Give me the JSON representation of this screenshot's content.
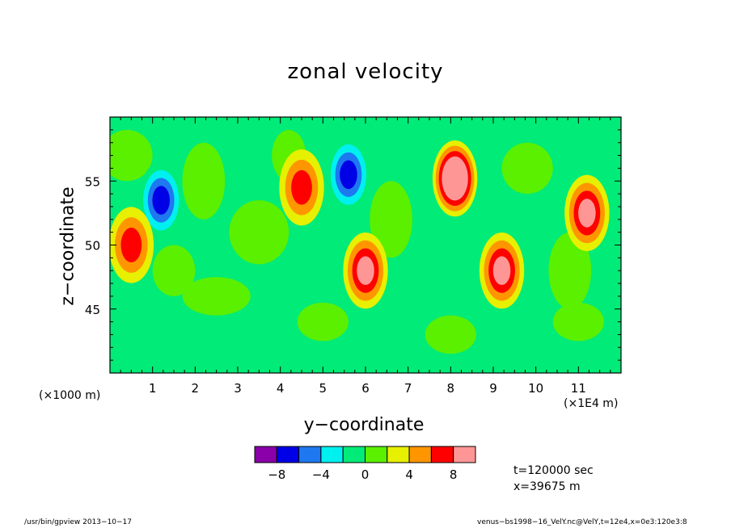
{
  "chart_data": {
    "type": "heatmap",
    "title": "zonal velocity",
    "xlabel": "y−coordinate",
    "ylabel": "z−coordinate",
    "x_unit_note_left": "(×1000 m)",
    "x_unit_note_right": "(×1E4 m)",
    "xlim": [
      0,
      12
    ],
    "ylim": [
      40,
      60
    ],
    "x_ticks": [
      "1",
      "2",
      "3",
      "4",
      "5",
      "6",
      "7",
      "8",
      "9",
      "10",
      "11"
    ],
    "y_ticks": [
      "45",
      "50",
      "55"
    ],
    "colorbar": {
      "levels": [
        -10,
        -8,
        -6,
        -4,
        -2,
        0,
        2,
        4,
        6,
        8,
        10
      ],
      "tick_labels": [
        "−8",
        "−4",
        "0",
        "4",
        "8"
      ],
      "tick_values": [
        -8,
        -4,
        0,
        4,
        8
      ],
      "colors": [
        "#8a00a8",
        "#0000e6",
        "#1e78f0",
        "#00f0f0",
        "#00eb78",
        "#5af000",
        "#e6f000",
        "#ff9600",
        "#ff0000",
        "#ff9696"
      ]
    },
    "background_color": "#00eb78",
    "features": [
      {
        "y": 8.1,
        "z": 55.2,
        "value": 9,
        "sign": "positive"
      },
      {
        "y": 5.6,
        "z": 55.5,
        "value": -5,
        "sign": "negative"
      },
      {
        "y": 1.2,
        "z": 53.5,
        "value": -5,
        "sign": "negative"
      },
      {
        "y": 6.0,
        "z": 48.0,
        "value": 5,
        "sign": "positive"
      },
      {
        "y": 11.2,
        "z": 52.5,
        "value": 5,
        "sign": "positive"
      },
      {
        "y": 9.2,
        "z": 48.0,
        "value": 5,
        "sign": "positive"
      },
      {
        "y": 0.5,
        "z": 50.0,
        "value": 3,
        "sign": "positive"
      },
      {
        "y": 4.5,
        "z": 54.5,
        "value": 3,
        "sign": "positive"
      }
    ]
  },
  "annotations": {
    "time": "t=120000 sec",
    "position": "x=39675 m"
  },
  "footer": {
    "left": "/usr/bin/gpview  2013−10−17",
    "right": "venus−bs1998−16_VelY.nc@VelY,t=12e4,x=0e3:120e3:8"
  }
}
